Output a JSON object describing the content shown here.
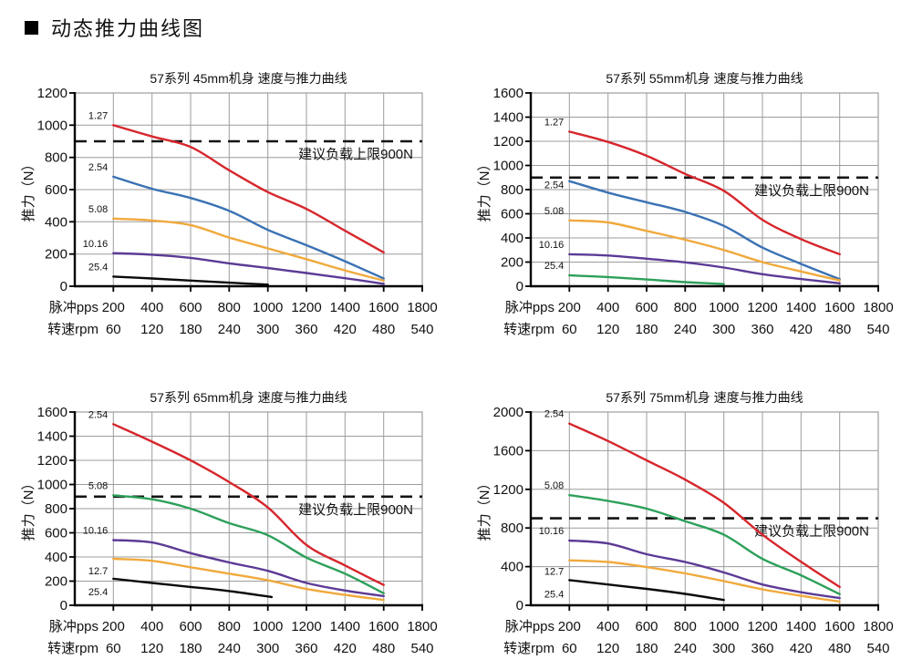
{
  "header": {
    "marker_icon": "black-square",
    "title": "动态推力曲线图"
  },
  "colors": {
    "grid": "#9c9c9c",
    "axis": "#000000",
    "limit_line": "#141414",
    "text": "#111111"
  },
  "chart_data": [
    {
      "type": "line",
      "id": "45mm",
      "title": "57系列 45mm机身 速度与推力曲线",
      "ylabel": "推力（N）",
      "ylim": [
        0,
        1200
      ],
      "ytick_step": 200,
      "grid": true,
      "x_axis": {
        "range": [
          0,
          1800
        ],
        "rows": [
          {
            "label": "脉冲pps",
            "ticks": [
              200,
              400,
              600,
              800,
              1000,
              1200,
              1400,
              1600,
              1800
            ]
          },
          {
            "label": "转速rpm",
            "ticks": [
              60,
              120,
              180,
              240,
              300,
              360,
              420,
              480,
              540
            ]
          }
        ]
      },
      "limit_line": {
        "value": 900,
        "label": "建议负载上限900N"
      },
      "series": [
        {
          "name": "1.27",
          "color": "#d6262c",
          "x": [
            200,
            400,
            600,
            800,
            1000,
            1200,
            1400,
            1600
          ],
          "y": [
            1000,
            930,
            865,
            720,
            585,
            480,
            345,
            210
          ]
        },
        {
          "name": "2.54",
          "color": "#3a72b4",
          "x": [
            200,
            400,
            600,
            800,
            1000,
            1200,
            1400,
            1600
          ],
          "y": [
            680,
            605,
            548,
            468,
            350,
            255,
            155,
            48
          ]
        },
        {
          "name": "5.08",
          "color": "#f0a93c",
          "x": [
            200,
            400,
            600,
            800,
            1000,
            1200,
            1400,
            1600
          ],
          "y": [
            420,
            408,
            380,
            302,
            235,
            168,
            98,
            35
          ]
        },
        {
          "name": "10.16",
          "color": "#5c3a96",
          "x": [
            200,
            400,
            600,
            800,
            1000,
            1200,
            1400,
            1600
          ],
          "y": [
            205,
            196,
            176,
            142,
            113,
            82,
            50,
            15
          ]
        },
        {
          "name": "25.4",
          "color": "#0a0a0a",
          "x": [
            200,
            400,
            600,
            800,
            1000
          ],
          "y": [
            60,
            48,
            35,
            22,
            10
          ]
        }
      ]
    },
    {
      "type": "line",
      "id": "55mm",
      "title": "57系列 55mm机身 速度与推力曲线",
      "ylabel": "推力（N）",
      "ylim": [
        0,
        1600
      ],
      "ytick_step": 200,
      "grid": true,
      "x_axis": {
        "range": [
          0,
          1800
        ],
        "rows": [
          {
            "label": "脉冲pps",
            "ticks": [
              200,
              400,
              600,
              800,
              1000,
              1200,
              1400,
              1600,
              1800
            ]
          },
          {
            "label": "转速rpm",
            "ticks": [
              60,
              120,
              180,
              240,
              300,
              360,
              420,
              480,
              540
            ]
          }
        ]
      },
      "limit_line": {
        "value": 900,
        "label": "建议负载上限900N"
      },
      "series": [
        {
          "name": "1.27",
          "color": "#d6262c",
          "x": [
            200,
            400,
            600,
            800,
            1000,
            1200,
            1400,
            1600
          ],
          "y": [
            1280,
            1195,
            1080,
            930,
            790,
            550,
            390,
            265
          ]
        },
        {
          "name": "2.54",
          "color": "#3a72b4",
          "x": [
            200,
            400,
            600,
            800,
            1000,
            1200,
            1400,
            1600
          ],
          "y": [
            870,
            775,
            695,
            615,
            500,
            320,
            185,
            58
          ],
          "label_dy": 15
        },
        {
          "name": "5.08",
          "color": "#f0a93c",
          "x": [
            200,
            400,
            600,
            800,
            1000,
            1200,
            1400,
            1600
          ],
          "y": [
            545,
            528,
            458,
            385,
            300,
            200,
            122,
            48
          ]
        },
        {
          "name": "10.16",
          "color": "#5c3a96",
          "x": [
            200,
            400,
            600,
            800,
            1000,
            1200,
            1400,
            1600
          ],
          "y": [
            265,
            254,
            228,
            198,
            155,
            100,
            60,
            24
          ]
        },
        {
          "name": "25.4",
          "color": "#2da05a",
          "x": [
            200,
            400,
            600,
            800,
            1000
          ],
          "y": [
            90,
            76,
            56,
            34,
            18
          ]
        }
      ]
    },
    {
      "type": "line",
      "id": "65mm",
      "title": "57系列 65mm机身 速度与推力曲线",
      "ylabel": "推力（N）",
      "ylim": [
        0,
        1600
      ],
      "ytick_step": 200,
      "grid": true,
      "x_axis": {
        "range": [
          0,
          1800
        ],
        "rows": [
          {
            "label": "脉冲pps",
            "ticks": [
              200,
              400,
              600,
              800,
              1000,
              1200,
              1400,
              1600,
              1800
            ]
          },
          {
            "label": "转速rpm",
            "ticks": [
              60,
              120,
              180,
              240,
              300,
              360,
              420,
              480,
              540
            ]
          }
        ]
      },
      "limit_line": {
        "value": 900,
        "label": "建议负载上限900N"
      },
      "series": [
        {
          "name": "2.54",
          "color": "#d6262c",
          "x": [
            200,
            400,
            600,
            800,
            1000,
            1200,
            1400,
            1600
          ],
          "y": [
            1500,
            1355,
            1200,
            1020,
            810,
            500,
            330,
            168
          ]
        },
        {
          "name": "5.08",
          "color": "#2da05a",
          "x": [
            200,
            400,
            600,
            800,
            1000,
            1200,
            1400,
            1600
          ],
          "y": [
            910,
            878,
            800,
            680,
            580,
            395,
            262,
            100
          ]
        },
        {
          "name": "10.16",
          "color": "#5c3a96",
          "x": [
            200,
            400,
            600,
            800,
            1000,
            1200,
            1400,
            1600
          ],
          "y": [
            540,
            520,
            432,
            355,
            285,
            185,
            122,
            76
          ]
        },
        {
          "name": "12.7",
          "color": "#f0a93c",
          "x": [
            200,
            400,
            600,
            800,
            1000,
            1200,
            1400,
            1600
          ],
          "y": [
            385,
            368,
            315,
            262,
            207,
            135,
            86,
            44
          ],
          "label_dy": 24
        },
        {
          "name": "25.4",
          "color": "#0a0a0a",
          "x": [
            200,
            400,
            600,
            800,
            1020
          ],
          "y": [
            220,
            185,
            152,
            118,
            68
          ],
          "label_dy": 25
        }
      ]
    },
    {
      "type": "line",
      "id": "75mm",
      "title": "57系列 75mm机身 速度与推力曲线",
      "ylabel": "推力（N）",
      "ylim": [
        0,
        2000
      ],
      "ytick_step": 400,
      "grid": true,
      "x_axis": {
        "range": [
          0,
          1800
        ],
        "rows": [
          {
            "label": "脉冲pps",
            "ticks": [
              200,
              400,
              600,
              800,
              1000,
              1200,
              1400,
              1600,
              1800
            ]
          },
          {
            "label": "转速rpm",
            "ticks": [
              60,
              120,
              180,
              240,
              300,
              360,
              420,
              480,
              540
            ]
          }
        ]
      },
      "limit_line": {
        "value": 900,
        "label": "建议负载上限900N"
      },
      "series": [
        {
          "name": "2.54",
          "color": "#d6262c",
          "x": [
            200,
            400,
            600,
            800,
            1000,
            1200,
            1400,
            1600
          ],
          "y": [
            1880,
            1700,
            1500,
            1300,
            1060,
            730,
            450,
            190
          ]
        },
        {
          "name": "5.08",
          "color": "#2da05a",
          "x": [
            200,
            400,
            600,
            800,
            1000,
            1200,
            1400,
            1600
          ],
          "y": [
            1140,
            1080,
            1000,
            870,
            730,
            480,
            310,
            115
          ]
        },
        {
          "name": "10.16",
          "color": "#5c3a96",
          "x": [
            200,
            400,
            600,
            800,
            1000,
            1200,
            1400,
            1600
          ],
          "y": [
            670,
            640,
            528,
            448,
            340,
            215,
            135,
            75
          ]
        },
        {
          "name": "12.7",
          "color": "#f0a93c",
          "x": [
            200,
            400,
            600,
            800,
            1000,
            1200,
            1400,
            1600
          ],
          "y": [
            465,
            448,
            395,
            330,
            250,
            165,
            98,
            38
          ],
          "label_dy": 23
        },
        {
          "name": "25.4",
          "color": "#0a0a0a",
          "x": [
            200,
            400,
            600,
            800,
            1000
          ],
          "y": [
            260,
            215,
            170,
            118,
            55
          ],
          "label_dy": 26
        }
      ]
    }
  ]
}
